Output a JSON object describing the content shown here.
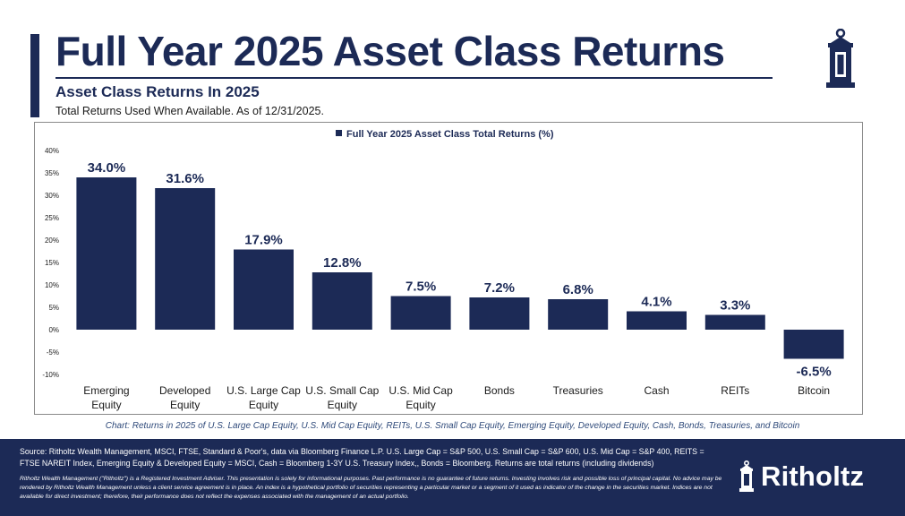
{
  "header": {
    "title": "Full Year 2025 Asset Class Returns",
    "subtitle": "Asset Class Returns In 2025",
    "note": "Total Returns Used When Available. As of 12/31/2025."
  },
  "chart_data": {
    "type": "bar",
    "title": "Full Year 2025 Asset Class Total Returns (%)",
    "legend": "Full Year 2025 Asset Class Total Returns (%)",
    "xlabel": "",
    "ylabel": "",
    "ylim": [
      -10,
      40
    ],
    "y_ticks": [
      40,
      35,
      30,
      25,
      20,
      15,
      10,
      5,
      0,
      -5,
      -10
    ],
    "y_tick_labels": [
      "40%",
      "35%",
      "30%",
      "25%",
      "20%",
      "15%",
      "10%",
      "5%",
      "0%",
      "-5%",
      "-10%"
    ],
    "grid": false,
    "categories": [
      [
        "Emerging",
        "Equity"
      ],
      [
        "Developed",
        "Equity"
      ],
      [
        "U.S. Large Cap",
        "Equity"
      ],
      [
        "U.S. Small Cap",
        "Equity"
      ],
      [
        "U.S. Mid Cap",
        "Equity"
      ],
      [
        "Bonds"
      ],
      [
        "Treasuries"
      ],
      [
        "Cash"
      ],
      [
        "REITs"
      ],
      [
        "Bitcoin"
      ]
    ],
    "values": [
      34.0,
      31.6,
      17.9,
      12.8,
      7.5,
      7.2,
      6.8,
      4.1,
      3.3,
      -6.5
    ],
    "data_labels": [
      "34.0%",
      "31.6%",
      "17.9%",
      "12.8%",
      "7.5%",
      "7.2%",
      "6.8%",
      "4.1%",
      "3.3%",
      "-6.5%"
    ],
    "bar_color": "#1c2a56"
  },
  "caption": "Chart: Returns in 2025  of U.S. Large Cap Equity, U.S. Mid Cap Equity, REITs, U.S. Small Cap Equity, Emerging Equity, Developed Equity, Cash, Bonds, Treasuries, and Bitcoin",
  "footer": {
    "source": "Source: Ritholtz Wealth Management, MSCI, FTSE, Standard & Poor's, data via Bloomberg Finance L.P. U.S. Large Cap = S&P 500, U.S. Small Cap = S&P 600, U.S. Mid Cap = S&P 400, REITS = FTSE NAREIT Index, Emerging Equity & Developed Equity = MSCI, Cash = Bloomberg 1-3Y U.S. Treasury Index,, Bonds = Bloomberg. Returns are total returns (including dividends)",
    "disclaimer": "Ritholtz Wealth Management (\"Ritholtz\") is a Registered Investment Adviser. This presentation is solely for informational purposes. Past performance is no guarantee of future returns. Investing involves risk and possible loss of principal capital. No advice may be rendered by Ritholtz Wealth Management unless a client service agreement is in place. An index is a hypothetical portfolio of securities representing a particular market or a segment of it used as indicator of the change in the securities market. Indices are not available for direct investment; therefore, their performance does not reflect the expenses associated with the management of an actual portfolio.",
    "brand": "Ritholtz"
  },
  "colors": {
    "navy": "#1c2a56",
    "caption": "#2f4a7a"
  }
}
